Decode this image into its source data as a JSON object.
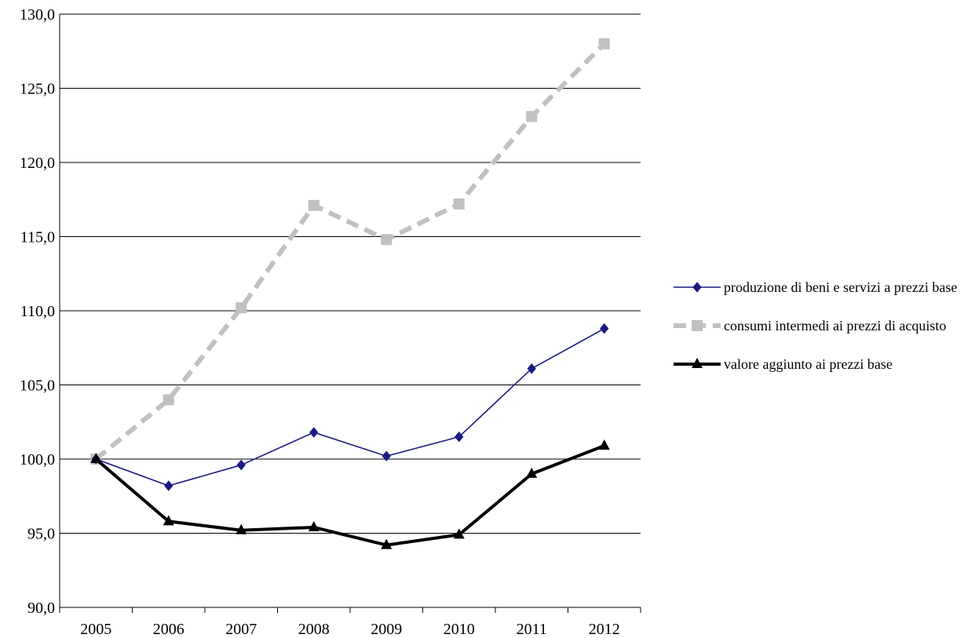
{
  "chart_data": {
    "type": "line",
    "title": "",
    "xlabel": "",
    "ylabel": "",
    "categories": [
      "2005",
      "2006",
      "2007",
      "2008",
      "2009",
      "2010",
      "2011",
      "2012"
    ],
    "ylim": [
      90,
      130
    ],
    "yticks": [
      "90,0",
      "95,0",
      "100,0",
      "105,0",
      "110,0",
      "115,0",
      "120,0",
      "125,0",
      "130,0"
    ],
    "grid": true,
    "legend_position": "right",
    "series": [
      {
        "name": "produzione di beni e servizi a prezzi base",
        "values": [
          100.0,
          98.2,
          99.6,
          101.8,
          100.2,
          101.5,
          106.1,
          108.8
        ],
        "color": "#1a1a80",
        "marker": "diamond",
        "style": "solid-thin"
      },
      {
        "name": "consumi intermedi ai prezzi di acquisto",
        "values": [
          100.0,
          104.0,
          110.2,
          117.1,
          114.8,
          117.2,
          123.1,
          128.0
        ],
        "color": "#c0c0c0",
        "marker": "square",
        "style": "dashed-thick"
      },
      {
        "name": "valore aggiunto ai prezzi base",
        "values": [
          100.0,
          95.8,
          95.2,
          95.4,
          94.2,
          94.9,
          99.0,
          100.9
        ],
        "color": "#000000",
        "marker": "triangle",
        "style": "solid-thick"
      }
    ]
  }
}
